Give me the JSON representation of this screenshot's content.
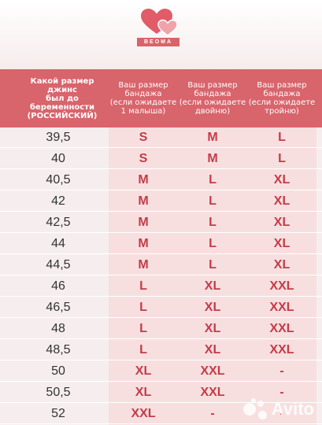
{
  "brand": {
    "name": "BEOMA",
    "accent": "#d8646c"
  },
  "header": {
    "col0": "Какой размер джинс\nбыл до беременности\n(РОССИЙСКИЙ)",
    "col1": "Ваш размер\nбандажа\n(если ожидаете\n1 малыша)",
    "col2": "Ваш размер\nбандажа\n(если ожидаете\nдвойню)",
    "col3": "Ваш размер\nбандажа\n(если ожидаете\nтройню)"
  },
  "rows": [
    [
      "39,5",
      "S",
      "M",
      "L"
    ],
    [
      "40",
      "S",
      "M",
      "L"
    ],
    [
      "40,5",
      "M",
      "L",
      "XL"
    ],
    [
      "42",
      "M",
      "L",
      "XL"
    ],
    [
      "42,5",
      "M",
      "L",
      "XL"
    ],
    [
      "44",
      "M",
      "L",
      "XL"
    ],
    [
      "44,5",
      "M",
      "L",
      "XL"
    ],
    [
      "46",
      "L",
      "XL",
      "XXL"
    ],
    [
      "46,5",
      "L",
      "XL",
      "XXL"
    ],
    [
      "48",
      "L",
      "XL",
      "XXL"
    ],
    [
      "48,5",
      "L",
      "XL",
      "XXL"
    ],
    [
      "50",
      "XL",
      "XXL",
      "-"
    ],
    [
      "50,5",
      "XL",
      "XXL",
      "-"
    ],
    [
      "52",
      "XXL",
      "-",
      "-"
    ]
  ],
  "watermark": {
    "text": "Avito",
    "icon": "avito-dots-icon"
  }
}
